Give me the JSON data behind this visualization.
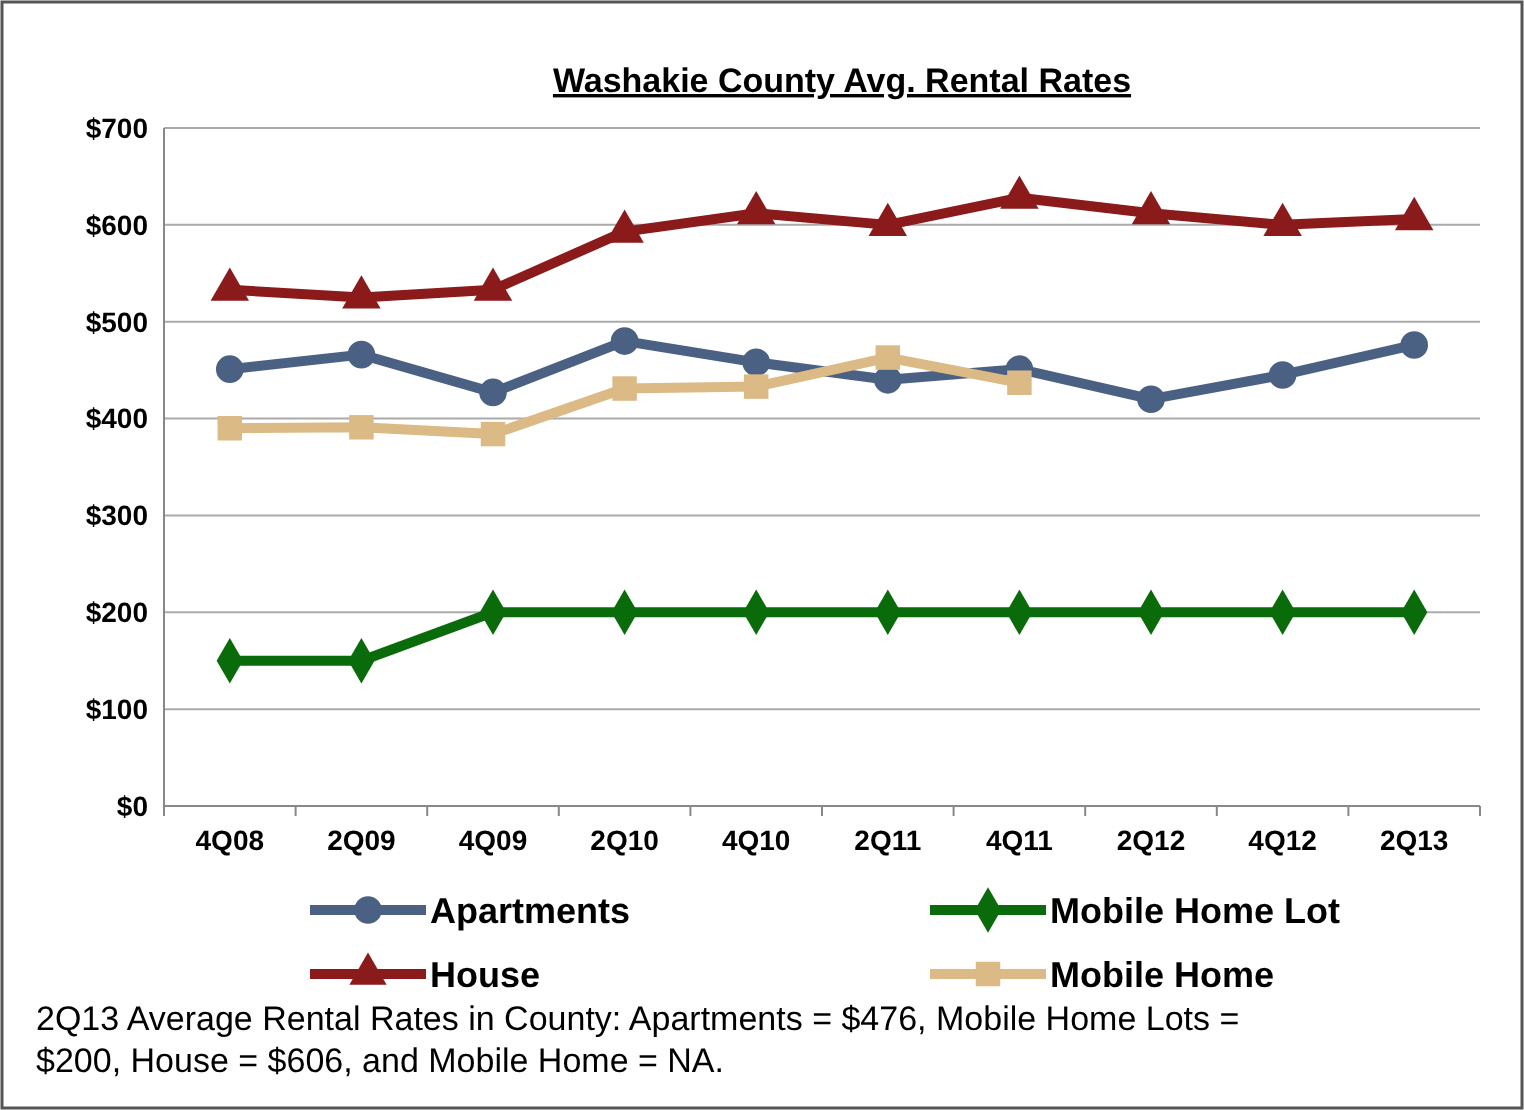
{
  "chart_data": {
    "type": "line",
    "title": "Washakie County Avg. Rental Rates",
    "categories": [
      "4Q08",
      "2Q09",
      "4Q09",
      "2Q10",
      "4Q10",
      "2Q11",
      "4Q11",
      "2Q12",
      "4Q12",
      "2Q13"
    ],
    "series": [
      {
        "name": "Apartments",
        "color": "#4a6184",
        "marker": "circle",
        "values": [
          451,
          466,
          427,
          480,
          458,
          440,
          451,
          420,
          445,
          476
        ]
      },
      {
        "name": "Mobile Home Lot",
        "color": "#0a6b0a",
        "marker": "diamond",
        "values": [
          150,
          150,
          200,
          200,
          200,
          200,
          200,
          200,
          200,
          200
        ]
      },
      {
        "name": "House",
        "color": "#8b1a1a",
        "marker": "triangle",
        "values": [
          533,
          525,
          533,
          593,
          612,
          600,
          628,
          612,
          600,
          606
        ]
      },
      {
        "name": "Mobile Home",
        "color": "#dcba85",
        "marker": "square",
        "values": [
          390,
          391,
          384,
          431,
          433,
          463,
          437,
          null,
          null,
          null
        ]
      }
    ],
    "ylim": [
      0,
      700
    ],
    "yticks": [
      {
        "value": 0,
        "label": "$0"
      },
      {
        "value": 100,
        "label": "$100"
      },
      {
        "value": 200,
        "label": "$200"
      },
      {
        "value": 300,
        "label": "$300"
      },
      {
        "value": 400,
        "label": "$400"
      },
      {
        "value": 500,
        "label": "$500"
      },
      {
        "value": 600,
        "label": "$600"
      },
      {
        "value": 700,
        "label": "$700"
      }
    ],
    "grid": "y",
    "legend": "bottom",
    "line_style": "solid",
    "annotations": [
      "2Q13 Average Rental Rates in County:  Apartments = $476, Mobile Home Lots = $200, House = $606, and Mobile Home = NA."
    ]
  }
}
